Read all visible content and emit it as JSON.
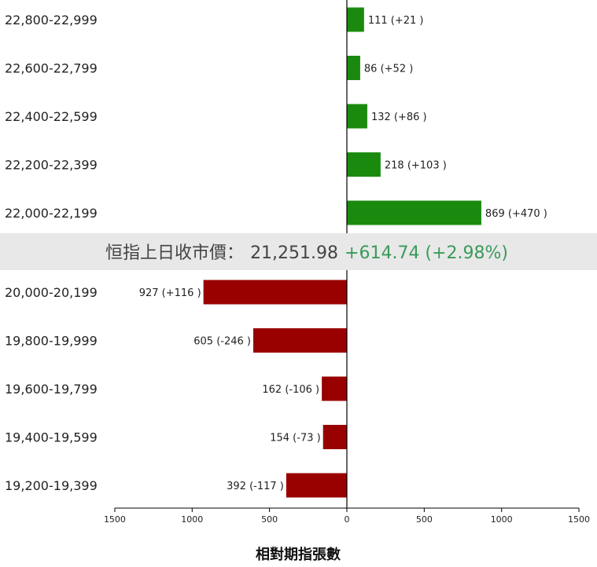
{
  "chart_data": {
    "type": "bar",
    "orientation": "horizontal",
    "xlabel": "相對期指張數",
    "xlim": [
      -1500,
      1500
    ],
    "x_ticks": [
      {
        "value": -1500,
        "label": "1500"
      },
      {
        "value": -1000,
        "label": "1000"
      },
      {
        "value": -500,
        "label": "500"
      },
      {
        "value": 0,
        "label": "0"
      },
      {
        "value": 500,
        "label": "500"
      },
      {
        "value": 1000,
        "label": "1000"
      },
      {
        "value": 1500,
        "label": "1500"
      }
    ],
    "colors": {
      "above": "#1a8a0e",
      "below": "#990000",
      "banner_bg": "#e8e8e8",
      "change": "#3a9a5a",
      "axis": "#000000"
    },
    "upper_rows": [
      {
        "category": "22,800-22,999",
        "value": 111,
        "label": "111 (+21 )"
      },
      {
        "category": "22,600-22,799",
        "value": 86,
        "label": "86 (+52 )"
      },
      {
        "category": "22,400-22,599",
        "value": 132,
        "label": "132 (+86 )"
      },
      {
        "category": "22,200-22,399",
        "value": 218,
        "label": "218 (+103 )"
      },
      {
        "category": "22,000-22,199",
        "value": 869,
        "label": "869 (+470 )"
      }
    ],
    "lower_rows": [
      {
        "category": "20,000-20,199",
        "value": -927,
        "label": "927 (+116 )"
      },
      {
        "category": "19,800-19,999",
        "value": -605,
        "label": "605 (-246 )"
      },
      {
        "category": "19,600-19,799",
        "value": -162,
        "label": "162 (-106 )"
      },
      {
        "category": "19,400-19,599",
        "value": -154,
        "label": "154 (-73 )"
      },
      {
        "category": "19,200-19,399",
        "value": -392,
        "label": "392 (-117 )"
      }
    ]
  },
  "banner": {
    "label": "恒指上日收市價：",
    "price": "21,251.98",
    "change": "+614.74 (+2.98%)"
  }
}
